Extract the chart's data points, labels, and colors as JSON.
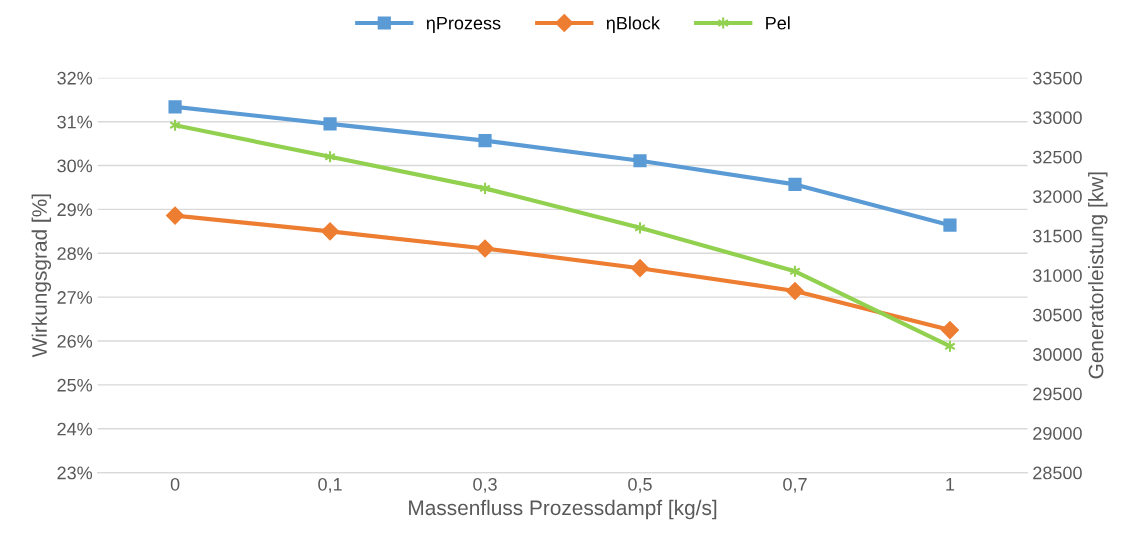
{
  "chart_data": {
    "type": "line",
    "xlabel": "Massenfluss Prozessdampf [kg/s]",
    "ylabel": "Wirkungsgrad [%]",
    "y2label": "Generatorleistung [kw]",
    "categories": [
      "0",
      "0,1",
      "0,3",
      "0,5",
      "0,7",
      "1"
    ],
    "series": [
      {
        "name": "ηProzess",
        "color": "#5b9bd5",
        "marker": "square",
        "values": [
          31.34,
          30.95,
          30.57,
          30.11,
          29.57,
          28.64
        ]
      },
      {
        "name": "ηBlock",
        "color": "#ed7d31",
        "marker": "diamond",
        "values": [
          28.86,
          28.5,
          28.11,
          27.66,
          27.14,
          26.25
        ]
      },
      {
        "name": "Pel",
        "color": "#92d050",
        "marker": "cross",
        "axis": "y2",
        "values": [
          32900,
          32500,
          32100,
          31600,
          31050,
          30100
        ]
      }
    ],
    "ylim": [
      23,
      32
    ],
    "yticks": [
      {
        "value": 23,
        "label": "23%"
      },
      {
        "value": 24,
        "label": "24%"
      },
      {
        "value": 25,
        "label": "25%"
      },
      {
        "value": 26,
        "label": "26%"
      },
      {
        "value": 27,
        "label": "27%"
      },
      {
        "value": 28,
        "label": "28%"
      },
      {
        "value": 29,
        "label": "29%"
      },
      {
        "value": 30,
        "label": "30%"
      },
      {
        "value": 31,
        "label": "31%"
      },
      {
        "value": 32,
        "label": "32%"
      }
    ],
    "y2lim": [
      28500,
      33500
    ],
    "y2ticks": [
      28500,
      29000,
      29500,
      30000,
      30500,
      31000,
      31500,
      32000,
      32500,
      33000,
      33500
    ],
    "grid": "y",
    "legend": "top",
    "line_style": "solid"
  }
}
